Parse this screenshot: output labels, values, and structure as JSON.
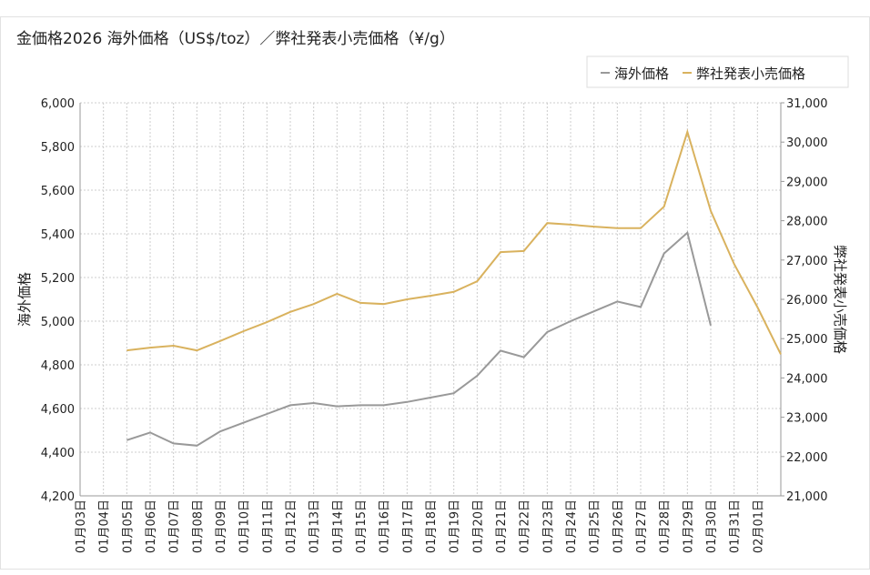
{
  "chart_data": {
    "type": "line",
    "title": "金価格2026 海外価格（US$/toz）／弊社発表小売価格（¥/g）",
    "y_label": "海外価格",
    "y2_label": "弊社発表小売価格",
    "legend": "top-right",
    "grid": true,
    "categories": [
      "01月03日",
      "01月04日",
      "01月05日",
      "01月06日",
      "01月07日",
      "01月08日",
      "01月09日",
      "01月10日",
      "01月11日",
      "01月12日",
      "01月13日",
      "01月14日",
      "01月15日",
      "01月16日",
      "01月17日",
      "01月18日",
      "01月19日",
      "01月20日",
      "01月21日",
      "01月22日",
      "01月23日",
      "01月24日",
      "01月25日",
      "01月26日",
      "01月27日",
      "01月28日",
      "01月29日",
      "01月30日",
      "01月31日",
      "02月01日",
      null
    ],
    "series": [
      {
        "name": "海外価格",
        "color": "#999999",
        "axis": "y",
        "values": [
          null,
          null,
          4455,
          4490,
          4440,
          4430,
          4495,
          4535,
          4575,
          4615,
          4625,
          4610,
          4615,
          4615,
          4630,
          4650,
          4670,
          4750,
          4865,
          4835,
          4950,
          5000,
          5045,
          5090,
          5065,
          5310,
          5405,
          4980,
          null,
          null,
          null
        ]
      },
      {
        "name": "弊社発表小売価格",
        "color": "#d9b25e",
        "axis": "y2",
        "values": [
          null,
          null,
          24700,
          24770,
          24820,
          24700,
          24940,
          25190,
          25420,
          25680,
          25880,
          26140,
          25910,
          25880,
          26000,
          26090,
          26190,
          26460,
          27200,
          27230,
          27940,
          27900,
          27850,
          27810,
          27810,
          28360,
          30260,
          28250,
          26900,
          25800,
          24600
        ]
      }
    ],
    "ylim": [
      4200,
      6000
    ],
    "yticks": [
      {
        "value": 4200,
        "label": "4,200"
      },
      {
        "value": 4400,
        "label": "4,400"
      },
      {
        "value": 4600,
        "label": "4,600"
      },
      {
        "value": 4800,
        "label": "4,800"
      },
      {
        "value": 5000,
        "label": "5,000"
      },
      {
        "value": 5200,
        "label": "5,200"
      },
      {
        "value": 5400,
        "label": "5,400"
      },
      {
        "value": 5600,
        "label": "5,600"
      },
      {
        "value": 5800,
        "label": "5,800"
      },
      {
        "value": 6000,
        "label": "6,000"
      }
    ],
    "y2lim": [
      21000,
      31000
    ],
    "y2ticks": [
      {
        "value": 21000,
        "label": "21,000"
      },
      {
        "value": 22000,
        "label": "22,000"
      },
      {
        "value": 23000,
        "label": "23,000"
      },
      {
        "value": 24000,
        "label": "24,000"
      },
      {
        "value": 25000,
        "label": "25,000"
      },
      {
        "value": 26000,
        "label": "26,000"
      },
      {
        "value": 27000,
        "label": "27,000"
      },
      {
        "value": 28000,
        "label": "28,000"
      },
      {
        "value": 29000,
        "label": "29,000"
      },
      {
        "value": 30000,
        "label": "30,000"
      },
      {
        "value": 31000,
        "label": "31,000"
      }
    ]
  }
}
